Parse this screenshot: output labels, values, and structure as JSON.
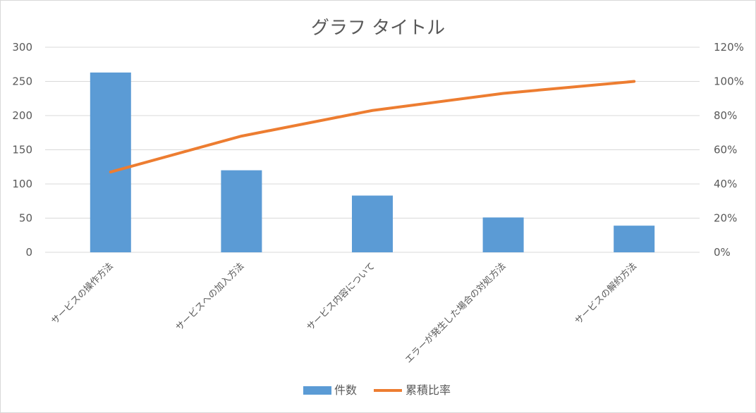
{
  "chart_data": {
    "type": "bar",
    "title": "グラフ タイトル",
    "categories": [
      "サービスの操作方法",
      "サービスへの加入方法",
      "サービス内容について",
      "エラーが発生した場合の対処方法",
      "サービスの解約方法"
    ],
    "series": [
      {
        "name": "件数",
        "type": "bar",
        "axis": "left",
        "color": "#5b9bd5",
        "values": [
          263,
          120,
          83,
          51,
          39
        ]
      },
      {
        "name": "累積比率",
        "type": "line",
        "axis": "right",
        "color": "#ed7d31",
        "values": [
          0.47,
          0.68,
          0.83,
          0.93,
          1.0
        ]
      }
    ],
    "y_left": {
      "min": 0,
      "max": 300,
      "ticks": [
        "0",
        "50",
        "100",
        "150",
        "200",
        "250",
        "300"
      ]
    },
    "y_right": {
      "min": 0,
      "max": 1.2,
      "ticks": [
        "0%",
        "20%",
        "40%",
        "60%",
        "80%",
        "100%",
        "120%"
      ]
    },
    "grid": true,
    "legend_position": "bottom"
  }
}
